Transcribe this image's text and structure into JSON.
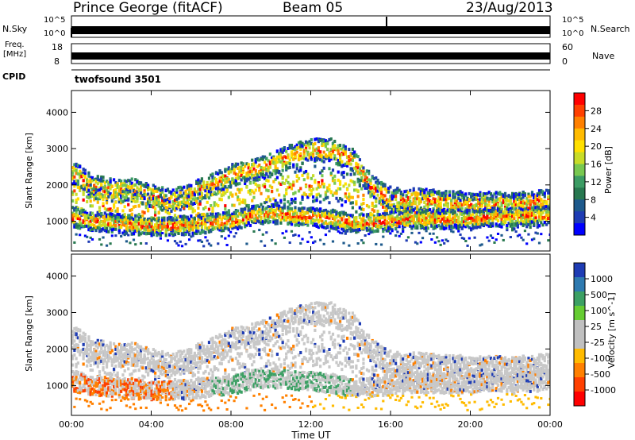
{
  "header": {
    "station": "Prince George (fitACF)",
    "beam": "Beam 05",
    "date": "23/Aug/2013"
  },
  "strip_labels": {
    "n_sky": "N.Sky",
    "n_sky_ticks": [
      "10^5",
      "10^0"
    ],
    "n_search": "N.Search",
    "n_search_ticks": [
      "10^5",
      "10^0"
    ],
    "freq_line1": "Freq.",
    "freq_line2": "[MHz]",
    "freq_ticks": [
      "18",
      "8"
    ],
    "nave": "Nave",
    "nave_ticks": [
      "60",
      "0"
    ],
    "cpid": "CPID",
    "cpid_value": "twofsound 3501"
  },
  "chart_data": [
    {
      "type": "heatmap",
      "quantity": "Power",
      "ylabel": "Slant Range [km]",
      "colorbar_label": "Power [dB]",
      "colorbar_ticks": [
        "28",
        "24",
        "20",
        "16",
        "12",
        "8",
        "4"
      ],
      "colorbar_colors": [
        "#ff0000",
        "#ff4000",
        "#ff8000",
        "#ffbb00",
        "#ffe000",
        "#c8dc28",
        "#78c850",
        "#3c9c64",
        "#287850",
        "#1e5a8c",
        "#1e3cb4",
        "#0000ff"
      ],
      "yticks": [
        "4000",
        "3000",
        "2000",
        "1000"
      ],
      "ylim": [
        180,
        4600
      ],
      "x_range_hours": [
        0,
        24
      ],
      "bands_km": {
        "hours": [
          0,
          1,
          2,
          3,
          4,
          5,
          6,
          7,
          8,
          9,
          10,
          11,
          12,
          13,
          14,
          15,
          16,
          17,
          18,
          19,
          20,
          21,
          22,
          23,
          24
        ],
        "upper": [
          2350,
          1950,
          1850,
          1850,
          1700,
          1550,
          1750,
          2000,
          2250,
          2400,
          2550,
          2800,
          2950,
          2950,
          2700,
          1950,
          1600,
          1600,
          1550,
          1500,
          1500,
          1500,
          1450,
          1500,
          1550
        ],
        "lower": [
          1100,
          1000,
          950,
          900,
          850,
          850,
          900,
          950,
          1000,
          1150,
          1200,
          1150,
          1100,
          1050,
          950,
          950,
          1000,
          1050,
          1050,
          1050,
          1050,
          1100,
          1100,
          1150,
          1150
        ]
      }
    },
    {
      "type": "heatmap",
      "quantity": "Velocity",
      "xlabel": "Time UT",
      "ylabel": "Slant Range [km]",
      "colorbar_label": "Velocity [m s^-1]",
      "colorbar_ticks": [
        "1000",
        "500",
        "100",
        "25",
        "-25",
        "-100",
        "-500",
        "-1000"
      ],
      "colorbar_colors": [
        "#1e3cb4",
        "#2e7ab0",
        "#3ca064",
        "#66cc33",
        "#c0c0c0",
        "#c0c0c0",
        "#ffbb00",
        "#ff8000",
        "#ff4000",
        "#ff0000"
      ],
      "xticks": [
        "00:00",
        "04:00",
        "08:00",
        "12:00",
        "16:00",
        "20:00",
        "00:00"
      ],
      "yticks": [
        "4000",
        "3000",
        "2000",
        "1000"
      ],
      "ylim": [
        180,
        4600
      ],
      "x_range_hours": [
        0,
        24
      ]
    }
  ],
  "colors": {
    "power_core": "#ff3000",
    "power_mid": "#ffbb00",
    "power_edge": "#3c9c64",
    "velocity_ground": "#c8c8c8",
    "velocity_neg": "#ff8000",
    "velocity_pos": "#3ca064"
  }
}
